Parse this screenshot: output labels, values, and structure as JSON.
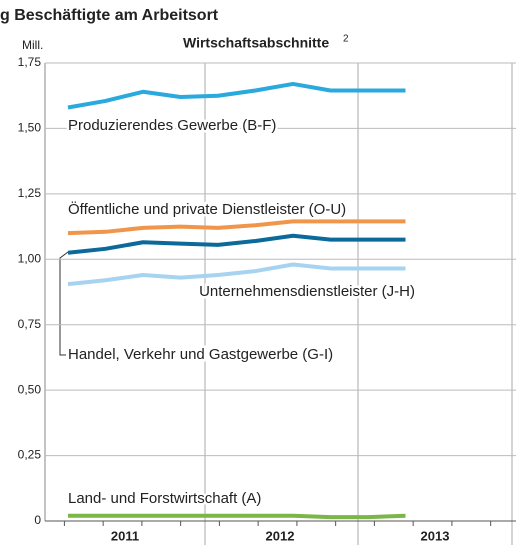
{
  "chart_data": {
    "type": "line",
    "title": "g Beschäftigte am Arbeitsort",
    "subtitle": "Wirtschaftsabschnitte",
    "subtitle_note": "2",
    "y_axis_label": "Mill.",
    "categories": [
      null,
      null,
      null,
      null,
      null,
      null,
      null,
      null,
      null,
      null
    ],
    "year_labels": [
      "2011",
      "2012",
      "2013"
    ],
    "ylim": [
      0,
      1.75
    ],
    "yticks": [
      0,
      {
        "value": 0.25,
        "label": "0,25"
      },
      {
        "value": 0.5,
        "label": "0,50"
      },
      {
        "value": 0.75,
        "label": "0,75"
      },
      {
        "value": 1.0,
        "label": "1,00"
      },
      {
        "value": 1.25,
        "label": "1,25"
      },
      {
        "value": 1.5,
        "label": "1,50"
      },
      {
        "value": 1.75,
        "label": "1,75"
      }
    ],
    "grid": true,
    "series": [
      {
        "name": "Produzierendes Gewerbe (B-F)",
        "color": "#29a9de",
        "values": [
          1.58,
          1.605,
          1.64,
          1.62,
          1.625,
          1.645,
          1.67,
          1.645,
          1.645,
          1.645
        ]
      },
      {
        "name": "Öffentliche und private Dienstleister (O-U)",
        "color": "#f0964a",
        "values": [
          1.1,
          1.105,
          1.12,
          1.125,
          1.12,
          1.13,
          1.145,
          1.145,
          1.145,
          1.145
        ]
      },
      {
        "name": "Handel, Verkehr und Gastgewerbe (G-I)",
        "color": "#0b6a9b",
        "values": [
          1.025,
          1.04,
          1.065,
          1.06,
          1.055,
          1.07,
          1.09,
          1.075,
          1.075,
          1.075
        ]
      },
      {
        "name": "Unternehmensdienstleister (J-H)",
        "color": "#a6d3ef",
        "values": [
          0.905,
          0.92,
          0.94,
          0.93,
          0.94,
          0.955,
          0.98,
          0.965,
          0.965,
          0.965
        ]
      },
      {
        "name": "Land- und Forstwirtschaft (A)",
        "color": "#7ab648",
        "values": [
          0.02,
          0.02,
          0.02,
          0.02,
          0.02,
          0.02,
          0.02,
          0.015,
          0.015,
          0.02
        ]
      }
    ]
  }
}
